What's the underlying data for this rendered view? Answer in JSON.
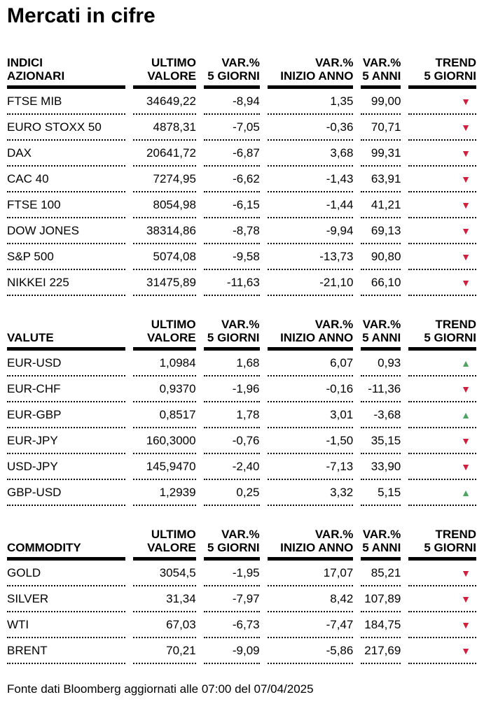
{
  "title": "Mercati in cifre",
  "footer": "Fonte dati Bloomberg aggiornati alle 07:00 del 07/04/2025",
  "colors": {
    "trend_down": "#d0203e",
    "trend_up": "#4da460",
    "text": "#000000"
  },
  "column_headers": {
    "ultimo": {
      "l1": "ULTIMO",
      "l2": "VALORE"
    },
    "var5g": {
      "l1": "VAR.%",
      "l2": "5 GIORNI"
    },
    "inizio": {
      "l1": "VAR.%",
      "l2": "INIZIO ANNO"
    },
    "var5a": {
      "l1": "VAR.%",
      "l2": "5 ANNI"
    },
    "trend": {
      "l1": "TREND",
      "l2": "5 GIORNI"
    }
  },
  "tables": [
    {
      "label_line1": "INDICI",
      "label": "AZIONARI",
      "rows": [
        {
          "name": "FTSE MIB",
          "ultimo": "34649,22",
          "var5g": "-8,94",
          "inizio": "1,35",
          "var5a": "99,00",
          "trend": "down",
          "trend_glyph": "▼",
          "trend_color": "#d0203e"
        },
        {
          "name": "EURO STOXX 50",
          "ultimo": "4878,31",
          "var5g": "-7,05",
          "inizio": "-0,36",
          "var5a": "70,71",
          "trend": "down",
          "trend_glyph": "▼",
          "trend_color": "#d0203e"
        },
        {
          "name": "DAX",
          "ultimo": "20641,72",
          "var5g": "-6,87",
          "inizio": "3,68",
          "var5a": "99,31",
          "trend": "down",
          "trend_glyph": "▼",
          "trend_color": "#d0203e"
        },
        {
          "name": "CAC 40",
          "ultimo": "7274,95",
          "var5g": "-6,62",
          "inizio": "-1,43",
          "var5a": "63,91",
          "trend": "down",
          "trend_glyph": "▼",
          "trend_color": "#d0203e"
        },
        {
          "name": "FTSE 100",
          "ultimo": "8054,98",
          "var5g": "-6,15",
          "inizio": "-1,44",
          "var5a": "41,21",
          "trend": "down",
          "trend_glyph": "▼",
          "trend_color": "#d0203e"
        },
        {
          "name": "DOW JONES",
          "ultimo": "38314,86",
          "var5g": "-8,78",
          "inizio": "-9,94",
          "var5a": "69,13",
          "trend": "down",
          "trend_glyph": "▼",
          "trend_color": "#d0203e"
        },
        {
          "name": "S&P 500",
          "ultimo": "5074,08",
          "var5g": "-9,58",
          "inizio": "-13,73",
          "var5a": "90,80",
          "trend": "down",
          "trend_glyph": "▼",
          "trend_color": "#d0203e"
        },
        {
          "name": "NIKKEI 225",
          "ultimo": "31475,89",
          "var5g": "-11,63",
          "inizio": "-21,10",
          "var5a": "66,10",
          "trend": "down",
          "trend_glyph": "▼",
          "trend_color": "#d0203e"
        }
      ]
    },
    {
      "label": "VALUTE",
      "rows": [
        {
          "name": "EUR-USD",
          "ultimo": "1,0984",
          "var5g": "1,68",
          "inizio": "6,07",
          "var5a": "0,93",
          "trend": "up",
          "trend_glyph": "▲",
          "trend_color": "#4da460"
        },
        {
          "name": "EUR-CHF",
          "ultimo": "0,9370",
          "var5g": "-1,96",
          "inizio": "-0,16",
          "var5a": "-11,36",
          "trend": "down",
          "trend_glyph": "▼",
          "trend_color": "#d0203e"
        },
        {
          "name": "EUR-GBP",
          "ultimo": "0,8517",
          "var5g": "1,78",
          "inizio": "3,01",
          "var5a": "-3,68",
          "trend": "up",
          "trend_glyph": "▲",
          "trend_color": "#4da460"
        },
        {
          "name": "EUR-JPY",
          "ultimo": "160,3000",
          "var5g": "-0,76",
          "inizio": "-1,50",
          "var5a": "35,15",
          "trend": "down",
          "trend_glyph": "▼",
          "trend_color": "#d0203e"
        },
        {
          "name": "USD-JPY",
          "ultimo": "145,9470",
          "var5g": "-2,40",
          "inizio": "-7,13",
          "var5a": "33,90",
          "trend": "down",
          "trend_glyph": "▼",
          "trend_color": "#d0203e"
        },
        {
          "name": "GBP-USD",
          "ultimo": "1,2939",
          "var5g": "0,25",
          "inizio": "3,32",
          "var5a": "5,15",
          "trend": "up",
          "trend_glyph": "▲",
          "trend_color": "#4da460"
        }
      ]
    },
    {
      "label": "COMMODITY",
      "rows": [
        {
          "name": "GOLD",
          "ultimo": "3054,5",
          "var5g": "-1,95",
          "inizio": "17,07",
          "var5a": "85,21",
          "trend": "down",
          "trend_glyph": "▼",
          "trend_color": "#d0203e"
        },
        {
          "name": "SILVER",
          "ultimo": "31,34",
          "var5g": "-7,97",
          "inizio": "8,42",
          "var5a": "107,89",
          "trend": "down",
          "trend_glyph": "▼",
          "trend_color": "#d0203e"
        },
        {
          "name": "WTI",
          "ultimo": "67,03",
          "var5g": "-6,73",
          "inizio": "-7,47",
          "var5a": "184,75",
          "trend": "down",
          "trend_glyph": "▼",
          "trend_color": "#d0203e"
        },
        {
          "name": "BRENT",
          "ultimo": "70,21",
          "var5g": "-9,09",
          "inizio": "-5,86",
          "var5a": "217,69",
          "trend": "down",
          "trend_glyph": "▼",
          "trend_color": "#d0203e"
        }
      ]
    }
  ]
}
